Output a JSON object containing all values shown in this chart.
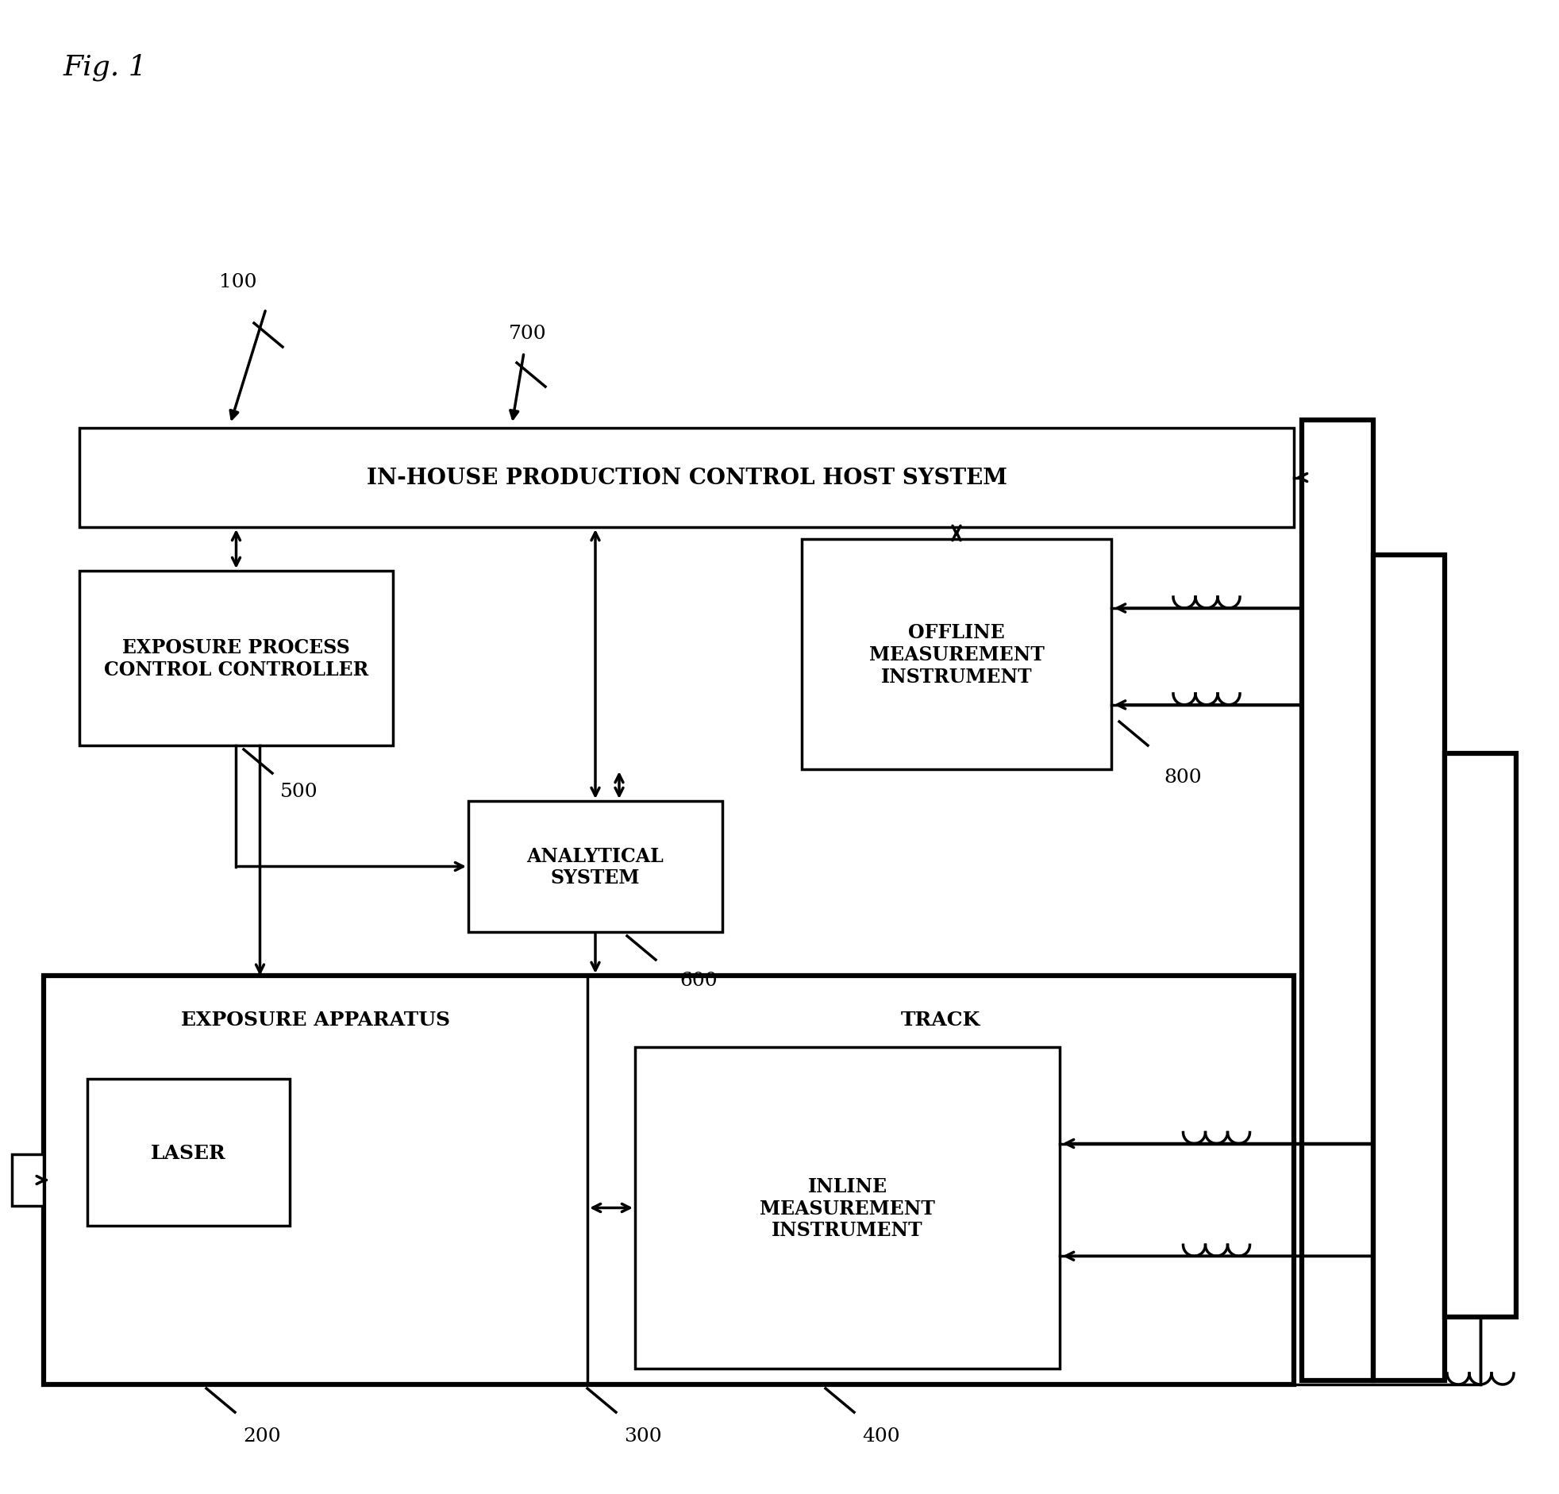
{
  "title": "Fig. 1",
  "bg_color": "#ffffff",
  "host_label": "IN-HOUSE PRODUCTION CONTROL HOST SYSTEM",
  "ctrl_label": "EXPOSURE PROCESS\nCONTROL CONTROLLER",
  "offline_label": "OFFLINE\nMEASUREMENT\nINSTRUMENT",
  "anal_label": "ANALYTICAL\nSYSTEM",
  "exp_label": "EXPOSURE APPARATUS",
  "laser_label": "LASER",
  "track_label": "TRACK",
  "inline_label": "INLINE\nMEASUREMENT\nINSTRUMENT",
  "id100": "100",
  "id200": "200",
  "id300": "300",
  "id400": "400",
  "id500": "500",
  "id600": "600",
  "id700": "700",
  "id800": "800",
  "lw": 2.5,
  "lw_thick": 4.5,
  "fs_title": 26,
  "fs_label": 17,
  "fs_num": 18
}
